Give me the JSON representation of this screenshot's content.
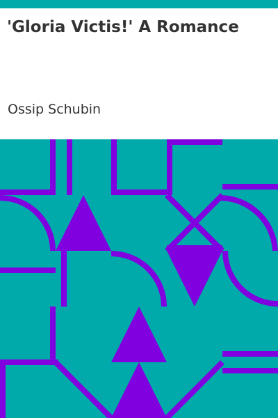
{
  "book": {
    "title": "'Gloria Victis!' A Romance",
    "author": "Ossip Schubin"
  },
  "colors": {
    "accent_teal": "#00aaaa",
    "pattern_purple": "#8000e0",
    "text": "#333333",
    "background": "#ffffff"
  },
  "cover_art": {
    "pattern": "geometric-tile",
    "shapes": [
      "triangle-up",
      "triangle-down",
      "quarter-arc",
      "cross",
      "stripe"
    ]
  }
}
